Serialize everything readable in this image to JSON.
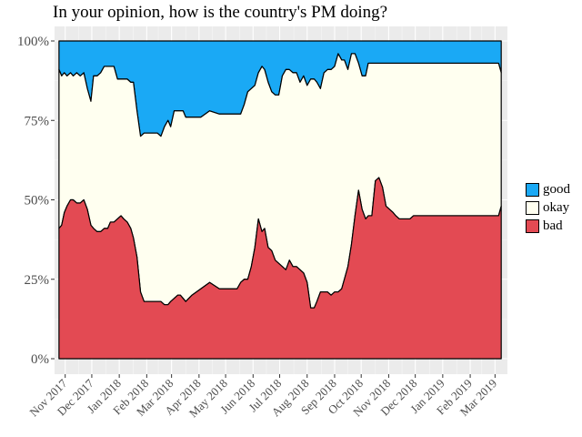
{
  "chart_data": {
    "type": "area",
    "title": "In your opinion, how is the country's PM doing?",
    "xlabel": "",
    "ylabel": "",
    "ylim": [
      0,
      100
    ],
    "y_ticks": [
      "0%",
      "25%",
      "50%",
      "75%",
      "100%"
    ],
    "x_tick_labels": [
      "Nov 2017",
      "Dec 2017",
      "Jan 2018",
      "Feb 2018",
      "Mar 2018",
      "Apr 2018",
      "May 2018",
      "Jun 2018",
      "Jul 2018",
      "Aug 2018",
      "Sep 2018",
      "Oct 2018",
      "Nov 2018",
      "Dec 2018",
      "Jan 2019",
      "Feb 2019",
      "Mar 2019"
    ],
    "stacked": true,
    "grid": true,
    "legend_position": "right",
    "colors": {
      "good": "#1aa9f5",
      "okay": "#fffff0",
      "bad": "#e34a53",
      "panel": "#ebebeb"
    },
    "x": [
      "2017-10-25",
      "2017-10-28",
      "2017-10-31",
      "2017-11-03",
      "2017-11-07",
      "2017-11-10",
      "2017-11-14",
      "2017-11-18",
      "2017-11-22",
      "2017-11-26",
      "2017-11-30",
      "2017-12-03",
      "2017-12-07",
      "2017-12-11",
      "2017-12-15",
      "2017-12-19",
      "2017-12-22",
      "2017-12-26",
      "2017-12-30",
      "2018-01-03",
      "2018-01-06",
      "2018-01-10",
      "2018-01-14",
      "2018-01-17",
      "2018-01-21",
      "2018-01-25",
      "2018-01-29",
      "2018-02-01",
      "2018-02-05",
      "2018-02-09",
      "2018-02-13",
      "2018-02-17",
      "2018-02-21",
      "2018-02-25",
      "2018-02-28",
      "2018-03-04",
      "2018-03-08",
      "2018-03-11",
      "2018-03-14",
      "2018-03-17",
      "2018-03-24",
      "2018-04-03",
      "2018-04-13",
      "2018-04-24",
      "2018-05-04",
      "2018-05-14",
      "2018-05-18",
      "2018-05-22",
      "2018-05-26",
      "2018-05-30",
      "2018-06-03",
      "2018-06-07",
      "2018-06-11",
      "2018-06-14",
      "2018-06-18",
      "2018-06-22",
      "2018-06-26",
      "2018-06-30",
      "2018-07-04",
      "2018-07-08",
      "2018-07-12",
      "2018-07-16",
      "2018-07-20",
      "2018-07-24",
      "2018-07-28",
      "2018-08-01",
      "2018-08-05",
      "2018-08-09",
      "2018-08-12",
      "2018-08-16",
      "2018-08-20",
      "2018-08-24",
      "2018-08-28",
      "2018-09-01",
      "2018-09-05",
      "2018-09-09",
      "2018-09-12",
      "2018-09-16",
      "2018-09-20",
      "2018-09-24",
      "2018-09-28",
      "2018-10-02",
      "2018-10-06",
      "2018-10-09",
      "2018-10-13",
      "2018-10-17",
      "2018-10-21",
      "2018-10-25",
      "2018-10-29",
      "2018-11-02",
      "2018-11-06",
      "2018-11-09",
      "2018-11-13",
      "2018-11-17",
      "2018-11-21",
      "2018-11-25",
      "2018-11-29",
      "2018-12-03",
      "2018-12-07",
      "2018-12-10",
      "2018-12-14",
      "2018-12-18",
      "2018-12-22",
      "2018-12-26",
      "2018-12-30",
      "2019-01-03",
      "2019-01-07",
      "2019-01-10",
      "2019-01-14",
      "2019-01-18",
      "2019-01-22",
      "2019-01-26",
      "2019-01-30",
      "2019-02-03",
      "2019-02-07",
      "2019-02-10",
      "2019-02-14",
      "2019-02-18",
      "2019-02-22",
      "2019-02-26",
      "2019-03-02",
      "2019-03-05",
      "2019-03-08"
    ],
    "series": [
      {
        "name": "bad",
        "values": [
          41,
          42,
          46,
          48,
          50,
          50,
          49,
          49,
          50,
          47,
          42,
          41,
          40,
          40,
          41,
          41,
          43,
          43,
          44,
          45,
          44,
          43,
          41,
          38,
          32,
          21,
          18,
          18,
          18,
          18,
          18,
          18,
          17,
          17,
          18,
          19,
          20,
          20,
          19,
          18,
          20,
          22,
          24,
          22,
          22,
          22,
          24,
          25,
          25,
          29,
          35,
          44,
          40,
          41,
          35,
          34,
          31,
          30,
          29,
          28,
          31,
          29,
          29,
          28,
          27,
          24,
          16,
          16,
          18,
          21,
          21,
          21,
          20,
          21,
          21,
          22,
          25,
          29,
          36,
          45,
          53,
          47,
          44,
          45,
          45,
          56,
          57,
          54,
          48,
          47,
          46,
          45,
          44,
          44,
          44,
          44,
          45,
          45,
          45,
          45,
          45,
          45,
          45,
          45,
          45,
          45,
          45,
          45,
          45,
          45,
          45,
          45,
          45,
          45,
          45,
          45,
          45,
          45,
          45,
          45,
          45,
          45,
          48
        ]
      },
      {
        "name": "okay",
        "values": [
          50,
          47,
          44,
          41,
          40,
          39,
          41,
          40,
          40,
          38,
          39,
          48,
          49,
          50,
          51,
          51,
          49,
          49,
          44,
          43,
          44,
          45,
          46,
          49,
          46,
          49,
          53,
          53,
          53,
          53,
          53,
          52,
          56,
          58,
          55,
          59,
          58,
          58,
          59,
          58,
          56,
          54,
          54,
          55,
          55,
          55,
          53,
          55,
          59,
          56,
          51,
          46,
          52,
          50,
          52,
          50,
          52,
          53,
          60,
          63,
          60,
          61,
          61,
          59,
          62,
          62,
          72,
          72,
          69,
          64,
          69,
          70,
          71,
          71,
          75,
          72,
          69,
          62,
          60,
          51,
          40,
          42,
          45,
          48,
          48,
          37,
          36,
          39,
          45,
          46,
          47,
          48,
          49,
          49,
          49,
          49,
          48,
          48,
          48,
          48,
          48,
          48,
          48,
          48,
          48,
          48,
          48,
          48,
          48,
          48,
          48,
          48,
          48,
          48,
          48,
          48,
          48,
          48,
          48,
          48,
          48,
          48,
          42
        ]
      }
    ]
  }
}
